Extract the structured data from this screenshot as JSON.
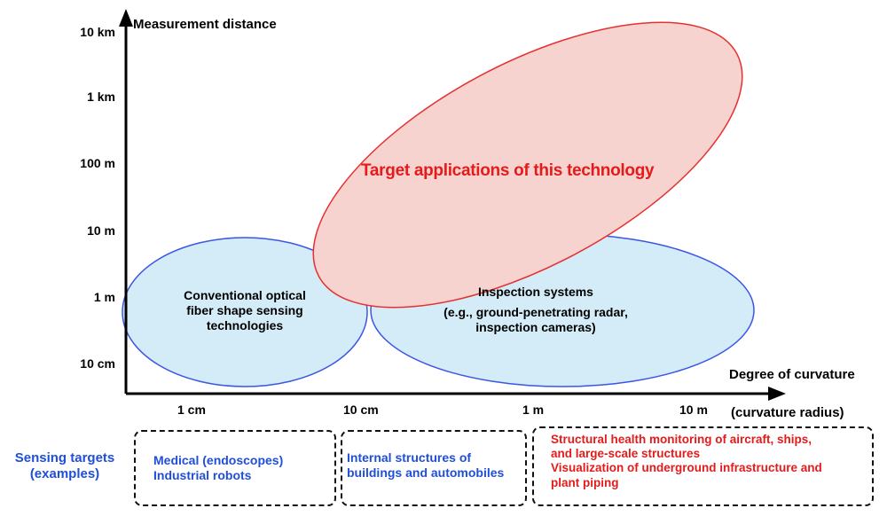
{
  "axes": {
    "y_label": "Measurement distance",
    "y_ticks": [
      "10 km",
      "1 km",
      "100 m",
      "10 m",
      "1 m",
      "10 cm"
    ],
    "x_label": "Degree of curvature",
    "x_sublabel": "(curvature radius)",
    "x_ticks": [
      "1 cm",
      "10 cm",
      "1 m",
      "10 m"
    ]
  },
  "regions": {
    "conventional": {
      "line1": "Conventional optical",
      "line2": "fiber shape sensing",
      "line3": "technologies",
      "fill": "#d4ecf7",
      "stroke": "#3b55e6"
    },
    "inspection": {
      "line1": "Inspection systems",
      "line2": "(e.g., ground-penetrating radar,",
      "line3": "inspection cameras)",
      "fill": "#d4ecf7",
      "stroke": "#3b55e6"
    },
    "target": {
      "label": "Target applications of this technology",
      "fill": "#f7d3d0",
      "stroke": "#e63030"
    }
  },
  "sensing_targets": {
    "heading_line1": "Sensing targets",
    "heading_line2": "(examples)",
    "box1": {
      "line1": "Medical (endoscopes)",
      "line2": "Industrial robots"
    },
    "box2": {
      "line1": "Internal structures of",
      "line2": "buildings and automobiles"
    },
    "box3": {
      "line1": "Structural health monitoring of aircraft, ships,",
      "line2": "and large-scale structures",
      "line3": "Visualization of underground infrastructure and",
      "line4": "plant piping"
    }
  },
  "colors": {
    "axis": "#000000",
    "blue_text": "#1f4fd8",
    "red_text": "#e41b1b"
  }
}
